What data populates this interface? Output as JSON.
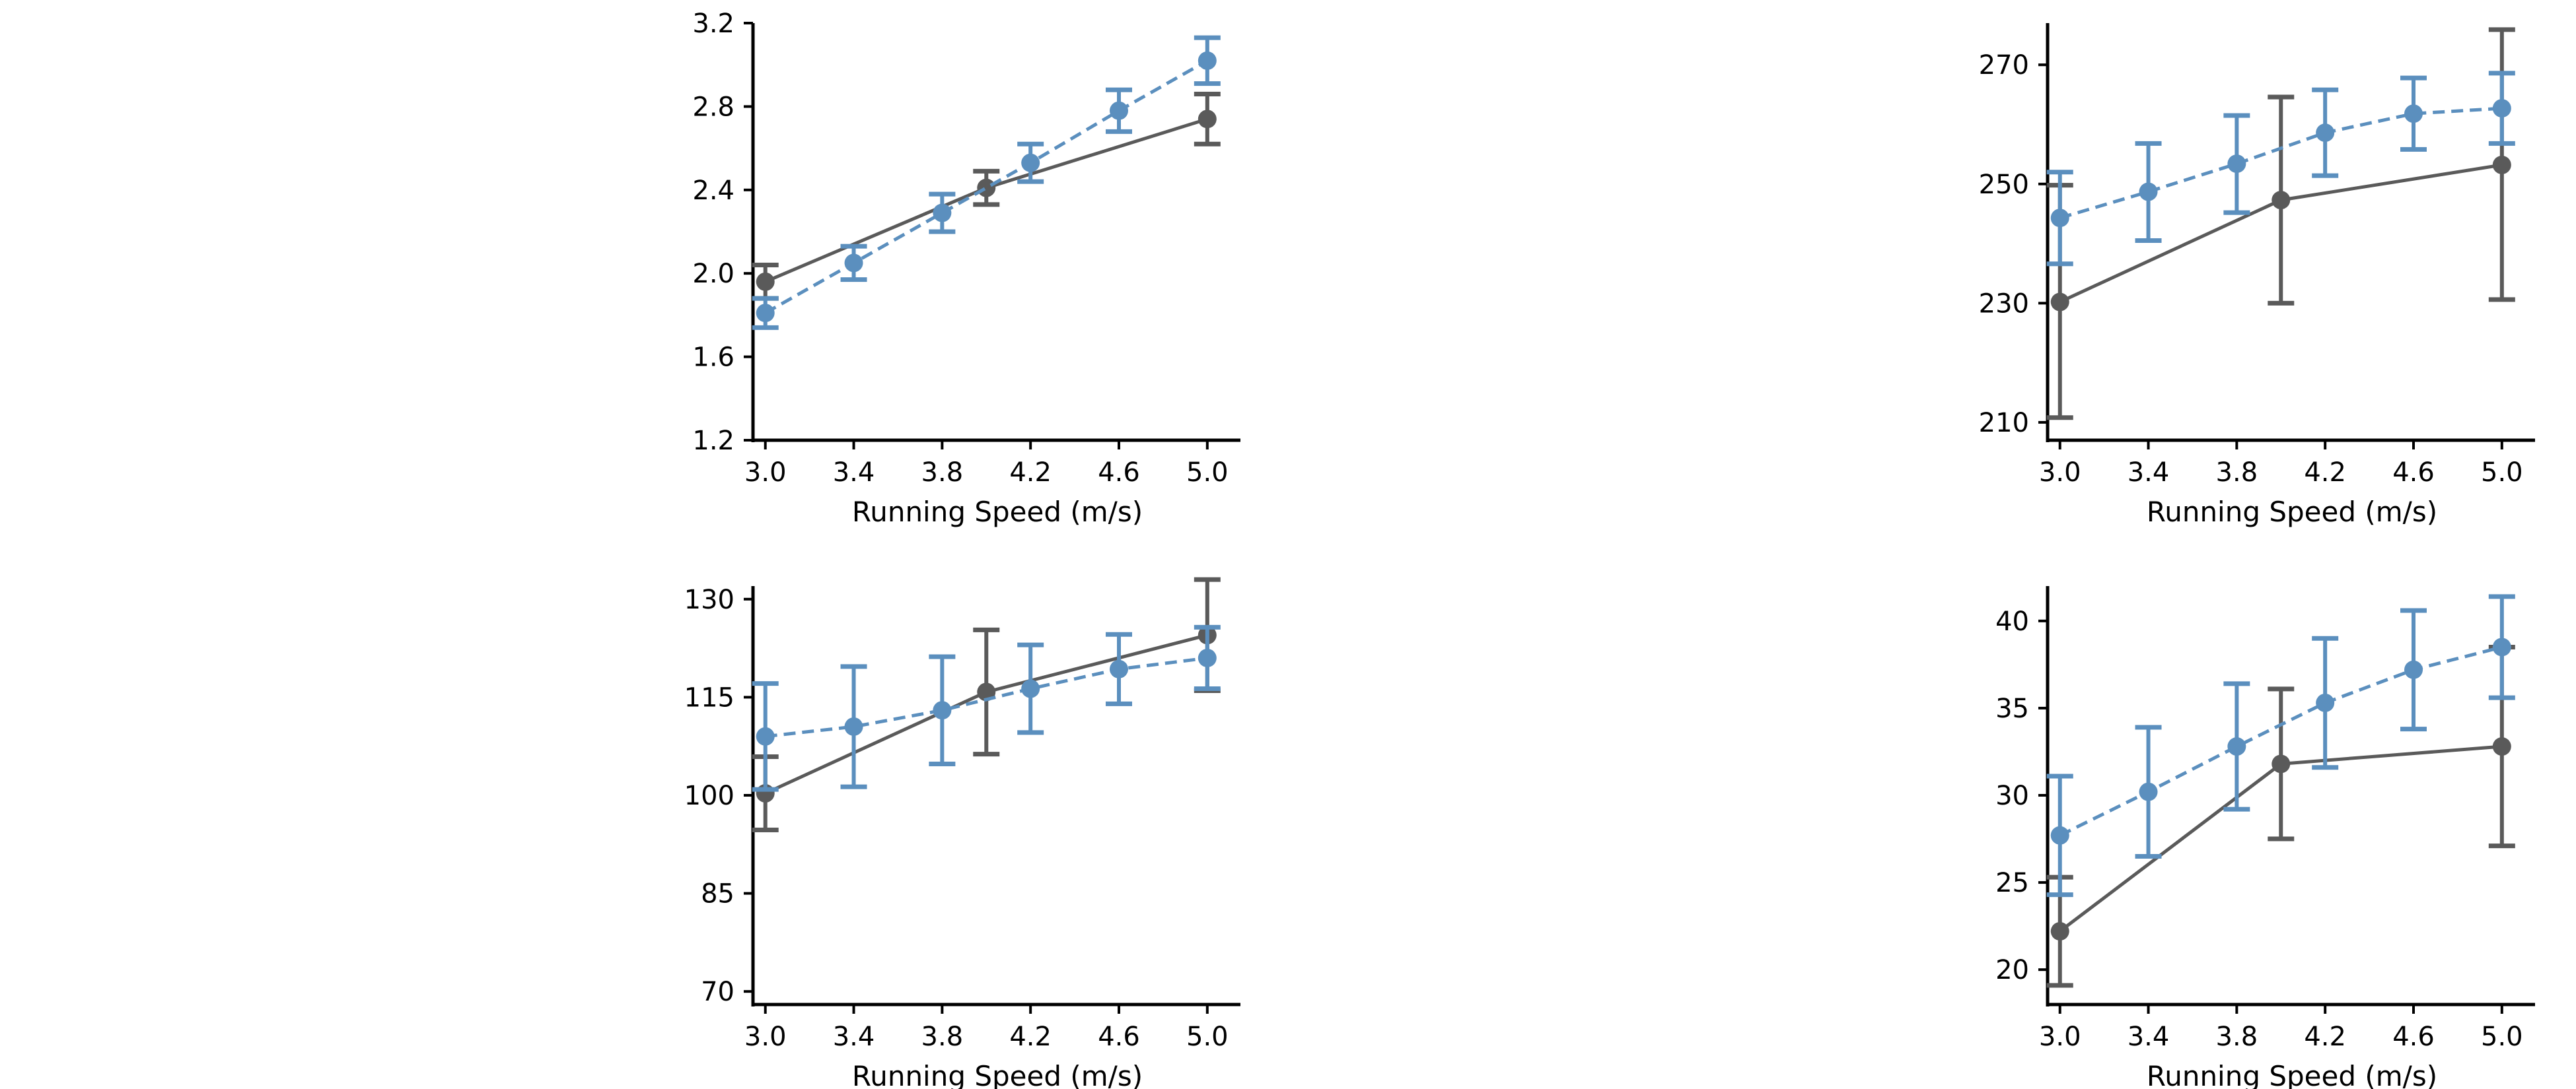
{
  "colors": {
    "gray": "#5a5a5a",
    "blue": "#5b8fbe"
  },
  "chart_data": [
    {
      "type": "line",
      "xlabel": "Running Speed (m/s)",
      "ylabel": "",
      "xlim": [
        2.95,
        5.15
      ],
      "ylim": [
        1.2,
        3.2
      ],
      "xticks": [
        "3.0",
        "3.4",
        "3.8",
        "4.2",
        "4.6",
        "5.0"
      ],
      "yticks": [
        "1.2",
        "1.6",
        "2.0",
        "2.4",
        "2.8",
        "3.2"
      ],
      "series": [
        {
          "color": "gray",
          "dashed": false,
          "x": [
            3.0,
            4.0,
            5.0
          ],
          "y": [
            1.96,
            2.41,
            2.74
          ],
          "err_low": [
            1.88,
            2.33,
            2.62
          ],
          "err_high": [
            2.04,
            2.49,
            2.86
          ]
        },
        {
          "color": "blue",
          "dashed": true,
          "x": [
            3.0,
            3.4,
            3.8,
            4.2,
            4.6,
            5.0
          ],
          "y": [
            1.81,
            2.05,
            2.29,
            2.53,
            2.78,
            3.02
          ],
          "err_low": [
            1.74,
            1.97,
            2.2,
            2.44,
            2.68,
            2.91
          ],
          "err_high": [
            1.88,
            2.13,
            2.38,
            2.62,
            2.88,
            3.13
          ]
        }
      ]
    },
    {
      "type": "line",
      "xlabel": "Running Speed (m/s)",
      "ylabel": "",
      "xlim": [
        2.95,
        5.15
      ],
      "ylim": [
        207,
        277
      ],
      "xticks": [
        "3.0",
        "3.4",
        "3.8",
        "4.2",
        "4.6",
        "5.0"
      ],
      "yticks": [
        "210",
        "230",
        "250",
        "270"
      ],
      "series": [
        {
          "color": "gray",
          "dashed": false,
          "x": [
            3.0,
            4.0,
            5.0
          ],
          "y": [
            230.2,
            247.3,
            253.2
          ],
          "err_low": [
            210.8,
            230.0,
            230.6
          ],
          "err_high": [
            249.8,
            264.6,
            275.9
          ]
        },
        {
          "color": "blue",
          "dashed": true,
          "x": [
            3.0,
            3.4,
            3.8,
            4.2,
            4.6,
            5.0
          ],
          "y": [
            244.3,
            248.7,
            253.4,
            258.6,
            261.8,
            262.7
          ],
          "err_low": [
            236.6,
            240.5,
            245.2,
            251.4,
            255.8,
            256.8
          ],
          "err_high": [
            252.0,
            256.8,
            261.5,
            265.8,
            267.8,
            268.6
          ]
        }
      ]
    },
    {
      "type": "line",
      "xlabel": "Running Speed (m/s)",
      "ylabel": "",
      "xlim": [
        2.95,
        5.15
      ],
      "ylim": [
        68,
        132
      ],
      "xticks": [
        "3.0",
        "3.4",
        "3.8",
        "4.2",
        "4.6",
        "5.0"
      ],
      "yticks": [
        "70",
        "85",
        "100",
        "115",
        "130"
      ],
      "series": [
        {
          "color": "gray",
          "dashed": false,
          "x": [
            3.0,
            4.0,
            5.0
          ],
          "y": [
            100.3,
            115.8,
            124.5
          ],
          "err_low": [
            94.7,
            106.3,
            116.0
          ],
          "err_high": [
            105.9,
            125.3,
            133.0
          ]
        },
        {
          "color": "blue",
          "dashed": true,
          "x": [
            3.0,
            3.4,
            3.8,
            4.2,
            4.6,
            5.0
          ],
          "y": [
            109.0,
            110.5,
            113.0,
            116.3,
            119.3,
            121.0
          ],
          "err_low": [
            100.9,
            101.3,
            104.8,
            109.6,
            114.0,
            116.3
          ],
          "err_high": [
            117.1,
            119.7,
            121.2,
            123.0,
            124.6,
            125.7
          ]
        }
      ]
    },
    {
      "type": "line",
      "xlabel": "Running Speed (m/s)",
      "ylabel": "",
      "xlim": [
        2.95,
        5.15
      ],
      "ylim": [
        18.0,
        42.0
      ],
      "xticks": [
        "3.0",
        "3.4",
        "3.8",
        "4.2",
        "4.6",
        "5.0"
      ],
      "yticks": [
        "20",
        "25",
        "30",
        "35",
        "40"
      ],
      "series": [
        {
          "color": "gray",
          "dashed": false,
          "x": [
            3.0,
            4.0,
            5.0
          ],
          "y": [
            22.2,
            31.8,
            32.8
          ],
          "err_low": [
            19.1,
            27.5,
            27.1
          ],
          "err_high": [
            25.3,
            36.1,
            38.5
          ]
        },
        {
          "color": "blue",
          "dashed": true,
          "x": [
            3.0,
            3.4,
            3.8,
            4.2,
            4.6,
            5.0
          ],
          "y": [
            27.7,
            30.2,
            32.8,
            35.3,
            37.2,
            38.5
          ],
          "err_low": [
            24.3,
            26.5,
            29.2,
            31.6,
            33.8,
            35.6
          ],
          "err_high": [
            31.1,
            33.9,
            36.4,
            39.0,
            40.6,
            41.4
          ]
        }
      ]
    }
  ]
}
